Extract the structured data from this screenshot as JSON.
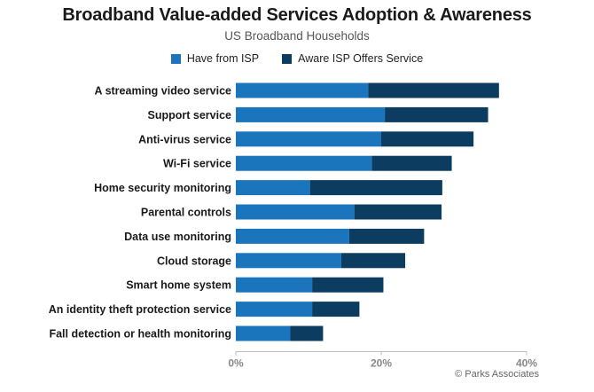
{
  "chart_data": {
    "type": "bar",
    "orientation": "horizontal",
    "stacked": true,
    "title": "Broadband Value-added Services Adoption & Awareness",
    "subtitle": "US Broadband Households",
    "categories": [
      "A streaming video service",
      "Support service",
      "Anti-virus service",
      "Wi-Fi service",
      "Home security monitoring",
      "Parental controls",
      "Data use monitoring",
      "Cloud storage",
      "Smart home system",
      "An identity theft protection service",
      "Fall detection or health monitoring"
    ],
    "series": [
      {
        "name": "Have from ISP",
        "color": "#1b75bc",
        "values": [
          18.2,
          20.5,
          20.0,
          18.7,
          10.2,
          16.3,
          15.6,
          14.5,
          10.5,
          10.5,
          7.5
        ]
      },
      {
        "name": "Aware ISP Offers Service",
        "color": "#0d3c61",
        "values": [
          18.0,
          14.2,
          12.7,
          11.0,
          18.2,
          12.0,
          10.3,
          8.8,
          9.8,
          6.5,
          4.5
        ]
      }
    ],
    "xlim": [
      0,
      40
    ],
    "xticks": [
      "0%",
      "20%",
      "40%"
    ],
    "legend": "top-center",
    "grid": false
  },
  "source": "© Parks Associates"
}
